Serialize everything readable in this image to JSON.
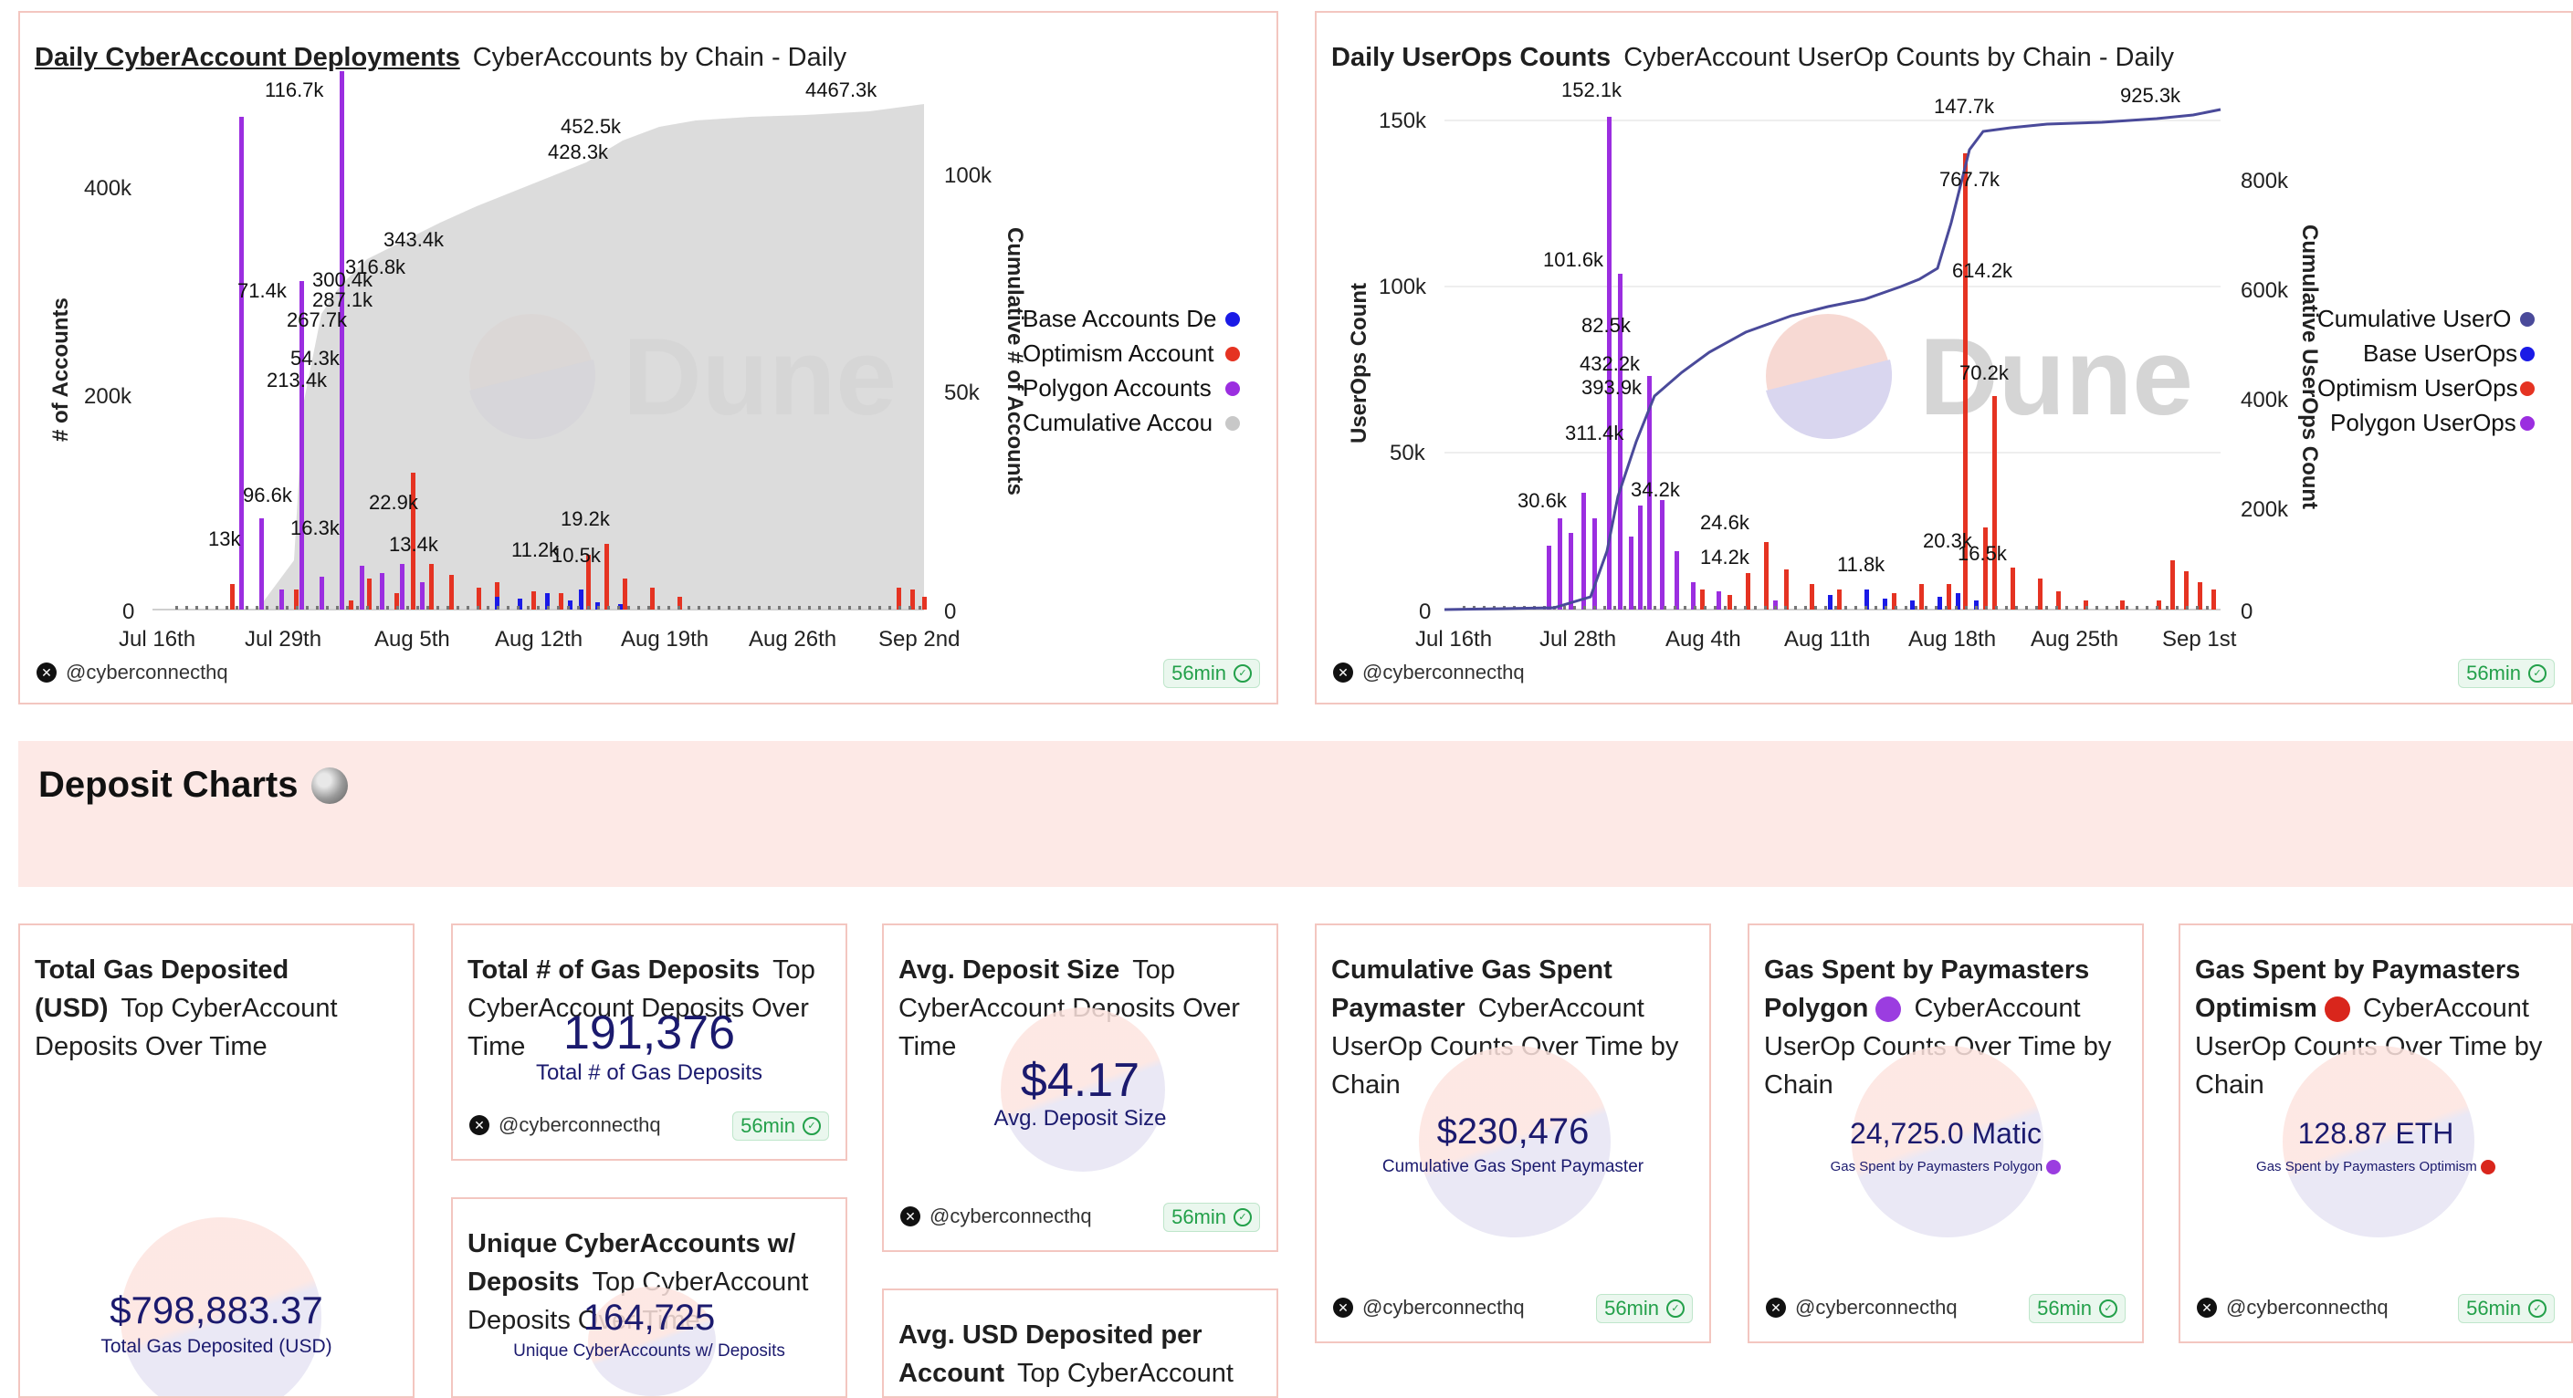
{
  "charts": {
    "deployments": {
      "title": "Daily CyberAccount Deployments",
      "subtitle": "CyberAccounts by Chain - Daily",
      "y_left_title": "# of Accounts",
      "y_right_title": "Cumulative # of Accounts",
      "y_left_ticks": [
        "400k",
        "200k",
        "0"
      ],
      "y_right_ticks": [
        "100k",
        "50k",
        "0"
      ],
      "x_ticks": [
        "Jul 16th",
        "Jul 29th",
        "Aug 5th",
        "Aug 12th",
        "Aug 19th",
        "Aug 26th",
        "Sep 2nd"
      ],
      "legend": [
        "Base Accounts De",
        "Optimism Account",
        "Polygon Accounts",
        "Cumulative Accou"
      ],
      "labels": [
        "116.7k",
        "71.4k",
        "267.7k",
        "54.3k",
        "213.4k",
        "96.6k",
        "16.3k",
        "13k",
        "22.9k",
        "13.4k",
        "19.2k",
        "11.2k",
        "10.5k",
        "343.4k",
        "316.8k",
        "300.4k",
        "287.1k",
        "428.3k",
        "452.5k",
        "4467.3k"
      ],
      "author": "@cyberconnecthq",
      "timer": "56min"
    },
    "userops": {
      "title": "Daily UserOps Counts",
      "subtitle": "CyberAccount UserOp Counts by Chain - Daily",
      "y_left_title": "UserOps Count",
      "y_right_title": "Cumulative UserOps Count",
      "y_left_ticks": [
        "150k",
        "100k",
        "50k",
        "0"
      ],
      "y_right_ticks": [
        "800k",
        "600k",
        "400k",
        "200k",
        "0"
      ],
      "x_ticks": [
        "Jul 16th",
        "Jul 28th",
        "Aug 4th",
        "Aug 11th",
        "Aug 18th",
        "Aug 25th",
        "Sep 1st"
      ],
      "legend": [
        "Cumulative UserO",
        "Base UserOps",
        "Optimism UserOps",
        "Polygon UserOps"
      ],
      "labels": [
        "152.1k",
        "101.6k",
        "82.5k",
        "432.2k",
        "393.9k",
        "311.4k",
        "34.2k",
        "30.6k",
        "24.6k",
        "14.2k",
        "147.7k",
        "767.7k",
        "614.2k",
        "70.2k",
        "20.3k",
        "16.5k",
        "11.8k",
        "925.3k"
      ],
      "author": "@cyberconnecthq",
      "timer": "56min"
    }
  },
  "section": {
    "title": "Deposit Charts"
  },
  "counters": {
    "total_gas": {
      "title": "Total Gas Deposited (USD)",
      "subtitle": "Top CyberAccount Deposits Over Time",
      "value": "$798,883.37",
      "label": "Total Gas Deposited (USD)"
    },
    "num_deposits": {
      "title": "Total # of Gas Deposits",
      "subtitle": "Top CyberAccount Deposits Over Time",
      "value": "191,376",
      "label": "Total # of Gas Deposits",
      "author": "@cyberconnecthq",
      "timer": "56min"
    },
    "unique_accounts": {
      "title": "Unique CyberAccounts w/ Deposits",
      "subtitle": "Top CyberAccount Deposits Over Time",
      "value": "164,725",
      "label": "Unique CyberAccounts w/ Deposits"
    },
    "avg_deposit": {
      "title": "Avg. Deposit Size",
      "subtitle": "Top CyberAccount Deposits Over Time",
      "value": "$4.17",
      "label": "Avg. Deposit Size",
      "author": "@cyberconnecthq",
      "timer": "56min"
    },
    "avg_usd": {
      "title": "Avg. USD Deposited per Account",
      "subtitle": "Top CyberAccount"
    },
    "cum_gas_paymaster": {
      "title": "Cumulative Gas Spent Paymaster",
      "subtitle": "CyberAccount UserOp Counts Over Time by Chain",
      "value": "$230,476",
      "label": "Cumulative Gas Spent Paymaster",
      "author": "@cyberconnecthq",
      "timer": "56min"
    },
    "gas_polygon": {
      "title": "Gas Spent by Paymasters Polygon",
      "subtitle": "CyberAccount UserOp Counts Over Time by Chain",
      "value": "24,725.0 Matic",
      "label": "Gas Spent by Paymasters Polygon",
      "author": "@cyberconnecthq",
      "timer": "56min"
    },
    "gas_optimism": {
      "title": "Gas Spent by Paymasters Optimism",
      "subtitle": "CyberAccount UserOp Counts Over Time by Chain",
      "value": "128.87 ETH",
      "label": "Gas Spent by Paymasters Optimism",
      "author": "@cyberconnecthq",
      "timer": "56min"
    }
  },
  "watermark": "Dune",
  "colors": {
    "base": "#1a1ae6",
    "optimism": "#e53322",
    "polygon": "#9b2ee0",
    "cumulative": "#c8c8c8",
    "cum_line": "#4a4a9a",
    "brand": "#1b1a6e"
  }
}
